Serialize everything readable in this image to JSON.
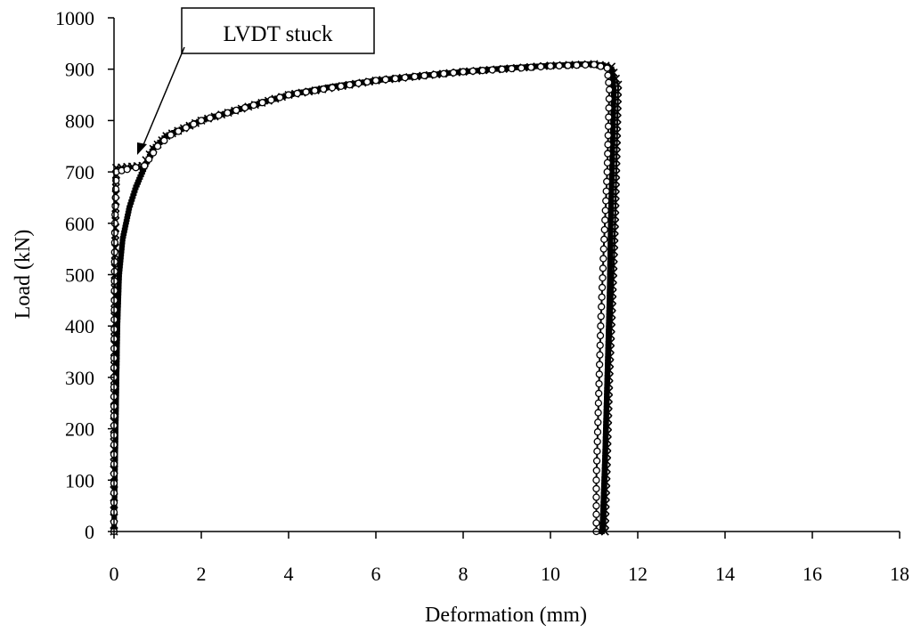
{
  "chart_data": {
    "type": "line",
    "title": "",
    "xlabel": "Deformation (mm)",
    "ylabel": "Load (kN)",
    "xlim": [
      0,
      18
    ],
    "ylim": [
      0,
      1000
    ],
    "x_ticks": [
      0,
      2,
      4,
      6,
      8,
      10,
      12,
      14,
      16,
      18
    ],
    "y_ticks": [
      0,
      100,
      200,
      300,
      400,
      500,
      600,
      700,
      800,
      900,
      1000
    ],
    "grid": false,
    "legend": "none",
    "series": [
      {
        "marker": "square",
        "color": "#000000",
        "points": [
          [
            0.0,
            0
          ],
          [
            0.02,
            100
          ],
          [
            0.05,
            250
          ],
          [
            0.08,
            400
          ],
          [
            0.12,
            500
          ],
          [
            0.2,
            570
          ],
          [
            0.35,
            630
          ],
          [
            0.5,
            670
          ],
          [
            0.7,
            710
          ],
          [
            0.9,
            745
          ],
          [
            1.2,
            770
          ],
          [
            1.6,
            785
          ],
          [
            2.0,
            800
          ],
          [
            3.0,
            825
          ],
          [
            4.0,
            850
          ],
          [
            5.0,
            866
          ],
          [
            6.0,
            878
          ],
          [
            7.0,
            887
          ],
          [
            8.0,
            895
          ],
          [
            9.0,
            902
          ],
          [
            10.0,
            907
          ],
          [
            10.8,
            910
          ],
          [
            11.2,
            908
          ],
          [
            11.4,
            900
          ],
          [
            11.45,
            860
          ],
          [
            11.42,
            750
          ],
          [
            11.38,
            600
          ],
          [
            11.35,
            450
          ],
          [
            11.3,
            300
          ],
          [
            11.25,
            150
          ],
          [
            11.2,
            30
          ],
          [
            11.18,
            0
          ]
        ]
      },
      {
        "marker": "cross",
        "color": "#000000",
        "points": [
          [
            0.0,
            0
          ],
          [
            0.0,
            200
          ],
          [
            0.02,
            500
          ],
          [
            0.05,
            708
          ],
          [
            0.3,
            710
          ],
          [
            0.65,
            712
          ],
          [
            0.9,
            745
          ],
          [
            1.2,
            770
          ],
          [
            2.0,
            800
          ],
          [
            4.0,
            850
          ],
          [
            6.0,
            878
          ],
          [
            8.0,
            895
          ],
          [
            10.0,
            907
          ],
          [
            11.0,
            910
          ],
          [
            11.4,
            905
          ],
          [
            11.55,
            870
          ],
          [
            11.52,
            750
          ],
          [
            11.48,
            600
          ],
          [
            11.42,
            450
          ],
          [
            11.35,
            300
          ],
          [
            11.3,
            150
          ],
          [
            11.25,
            0
          ]
        ]
      },
      {
        "marker": "circle",
        "color": "#000000",
        "points": [
          [
            0.0,
            0
          ],
          [
            0.0,
            300
          ],
          [
            0.02,
            600
          ],
          [
            0.05,
            700
          ],
          [
            0.3,
            705
          ],
          [
            0.7,
            712
          ],
          [
            1.0,
            750
          ],
          [
            1.3,
            772
          ],
          [
            2.0,
            800
          ],
          [
            4.0,
            850
          ],
          [
            6.0,
            878
          ],
          [
            8.0,
            895
          ],
          [
            10.0,
            906
          ],
          [
            11.0,
            909
          ],
          [
            11.3,
            902
          ],
          [
            11.35,
            860
          ],
          [
            11.3,
            700
          ],
          [
            11.22,
            550
          ],
          [
            11.15,
            400
          ],
          [
            11.1,
            250
          ],
          [
            11.05,
            100
          ],
          [
            11.05,
            0
          ]
        ]
      }
    ],
    "annotations": [
      {
        "text": "LVDT stuck",
        "target": [
          0.55,
          755
        ]
      }
    ]
  }
}
